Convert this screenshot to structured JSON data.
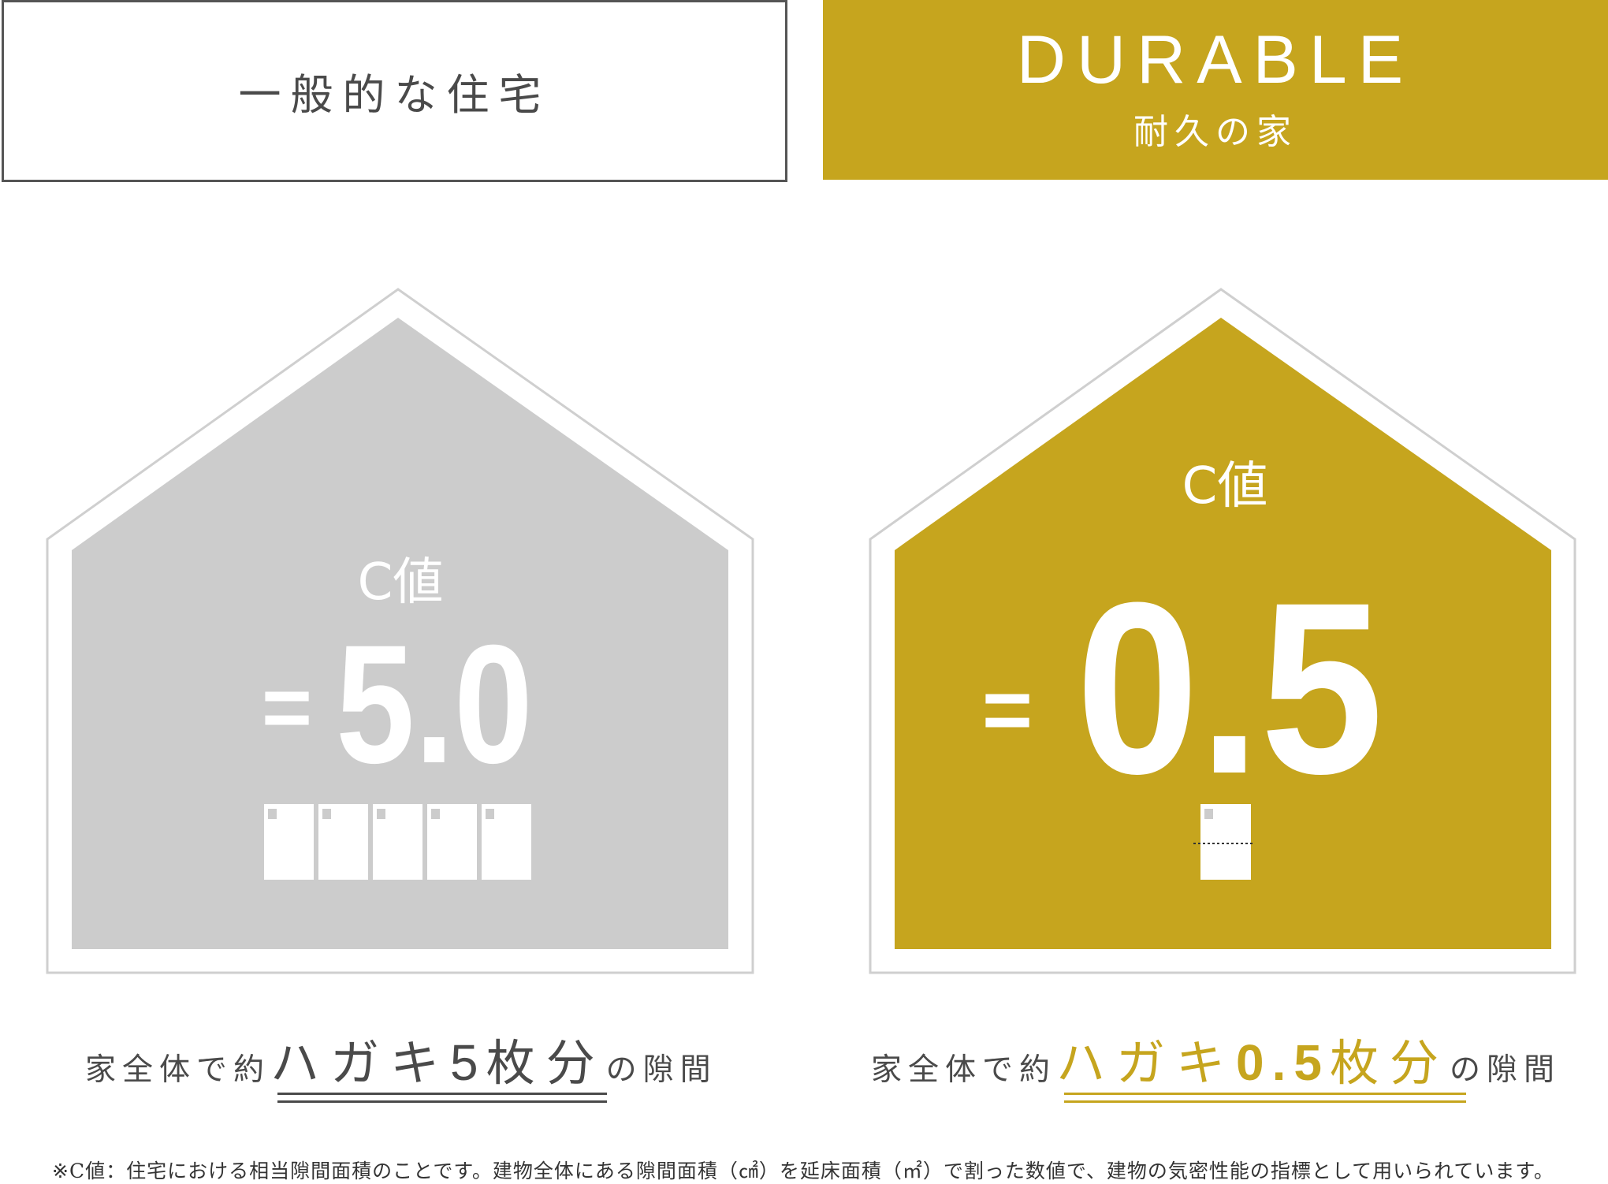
{
  "header": {
    "left_title": "一般的な住宅",
    "right_brand": "DURABLE",
    "right_subtitle": "耐久の家"
  },
  "left_house": {
    "label": "C値",
    "equals": "=",
    "value": "5.0",
    "postcard_count": 5,
    "color": "#cccccc"
  },
  "right_house": {
    "label": "C値",
    "equals": "=",
    "value": "0.5",
    "postcard_count": 0.5,
    "color": "#c6a51e"
  },
  "captions": {
    "left": {
      "prefix": "家全体で約",
      "emph": "ハガキ",
      "number": "5",
      "unit": "枚分",
      "suffix": "の隙間"
    },
    "right": {
      "prefix": "家全体で約",
      "emph": "ハガキ",
      "number": "0.5",
      "unit": "枚分",
      "suffix": "の隙間"
    }
  },
  "footnote": "※C値：住宅における相当隙間面積のことです。建物全体にある隙間面積（㎠）を延床面積（㎡）で割った数値で、建物の気密性能の指標として用いられています。",
  "colors": {
    "gold": "#c6a51e",
    "gray_fill": "#cccccc",
    "outline": "#cfcfcf",
    "text": "#4a4a4a"
  }
}
